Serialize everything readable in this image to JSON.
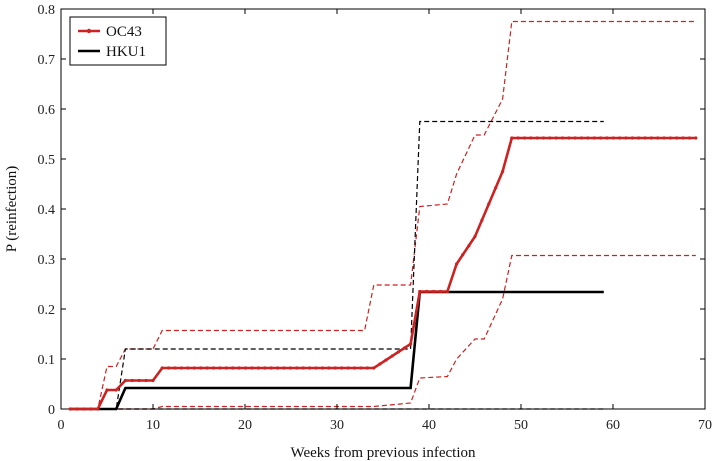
{
  "chart_data": {
    "type": "line",
    "title": "",
    "xlabel": "Weeks from previous infection",
    "ylabel": "P (reinfection)",
    "xlim": [
      0,
      70
    ],
    "ylim": [
      0,
      0.8
    ],
    "xticks": [
      0,
      10,
      20,
      30,
      40,
      50,
      60,
      70
    ],
    "yticks": [
      0,
      0.1,
      0.2,
      0.3,
      0.4,
      0.5,
      0.6,
      0.7,
      0.8
    ],
    "grid": false,
    "legend_position": "top-left",
    "series": [
      {
        "name": "OC43",
        "color": "#cc2222",
        "style": "solid-with-dots",
        "x": [
          1,
          4,
          5,
          6,
          7,
          10,
          11,
          34,
          38,
          39,
          42,
          43,
          45,
          48,
          49,
          69
        ],
        "y": [
          0,
          0,
          0.038,
          0.038,
          0.057,
          0.057,
          0.082,
          0.082,
          0.13,
          0.235,
          0.235,
          0.29,
          0.345,
          0.475,
          0.542,
          0.542
        ]
      },
      {
        "name": "HKU1",
        "color": "#000000",
        "style": "solid",
        "x": [
          1,
          6,
          7,
          38,
          39,
          59
        ],
        "y": [
          0,
          0,
          0.042,
          0.042,
          0.234,
          0.234
        ]
      }
    ],
    "confidence_bands": [
      {
        "of": "OC43",
        "bound": "upper",
        "color": "#cc2222",
        "x": [
          1,
          4,
          5,
          6,
          7,
          10,
          11,
          33,
          34,
          38,
          39,
          42,
          43,
          45,
          46,
          48,
          49,
          69
        ],
        "y": [
          0,
          0,
          0.085,
          0.085,
          0.12,
          0.12,
          0.157,
          0.157,
          0.248,
          0.248,
          0.405,
          0.41,
          0.47,
          0.548,
          0.548,
          0.62,
          0.775,
          0.775
        ]
      },
      {
        "of": "OC43",
        "bound": "lower",
        "color": "#cc2222",
        "x": [
          1,
          10,
          11,
          34,
          38,
          39,
          42,
          43,
          45,
          46,
          48,
          49,
          69
        ],
        "y": [
          0,
          0,
          0.005,
          0.005,
          0.012,
          0.062,
          0.065,
          0.1,
          0.14,
          0.14,
          0.22,
          0.307,
          0.307
        ]
      },
      {
        "of": "HKU1",
        "bound": "upper",
        "color": "#000000",
        "x": [
          1,
          6,
          7,
          38,
          39,
          59
        ],
        "y": [
          0,
          0,
          0.12,
          0.12,
          0.575,
          0.575
        ]
      },
      {
        "of": "HKU1",
        "bound": "lower",
        "color": "#000000",
        "x": [
          1,
          59
        ],
        "y": [
          0,
          0
        ]
      }
    ]
  }
}
